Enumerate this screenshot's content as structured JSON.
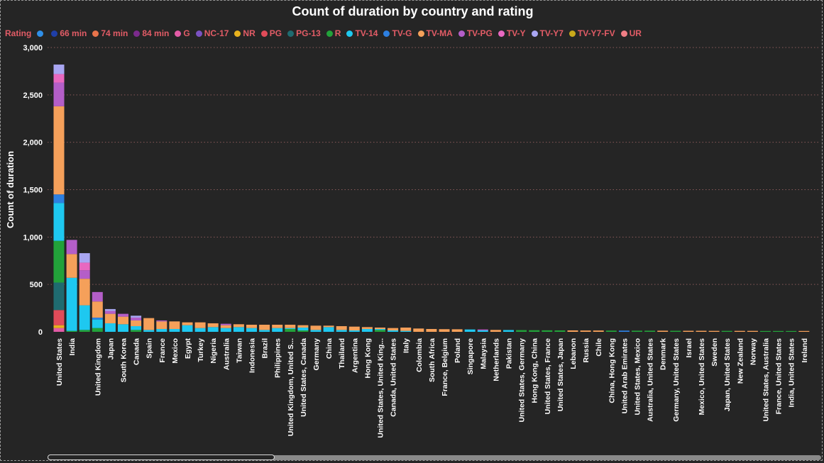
{
  "chart_data": {
    "type": "bar",
    "stacked": true,
    "title": "Count of duration by country and rating",
    "ylabel": "Count of duration",
    "xlabel": "",
    "ylim": [
      0,
      3000
    ],
    "yticks": [
      0,
      500,
      1000,
      1500,
      2000,
      2500,
      3000
    ],
    "ytick_labels": [
      "0",
      "500",
      "1,000",
      "1,500",
      "2,000",
      "2,500",
      "3,000"
    ],
    "grid": "horizontal-dotted",
    "legend_title": "Rating",
    "legend_position": "top-left",
    "series_defs": [
      {
        "name": "",
        "color": "#2f8fe8"
      },
      {
        "name": "66 min",
        "color": "#1f3fa8"
      },
      {
        "name": "74 min",
        "color": "#e8734a"
      },
      {
        "name": "84 min",
        "color": "#7b2a8c"
      },
      {
        "name": "G",
        "color": "#e35ba6"
      },
      {
        "name": "NC-17",
        "color": "#7a52c2"
      },
      {
        "name": "NR",
        "color": "#e8b21d"
      },
      {
        "name": "PG",
        "color": "#e04b59"
      },
      {
        "name": "PG-13",
        "color": "#1f6b70"
      },
      {
        "name": "R",
        "color": "#22a23a"
      },
      {
        "name": "TV-14",
        "color": "#1ec8f0"
      },
      {
        "name": "TV-G",
        "color": "#2d7fe0"
      },
      {
        "name": "TV-MA",
        "color": "#f5a05a"
      },
      {
        "name": "TV-PG",
        "color": "#b45ec8"
      },
      {
        "name": "TV-Y",
        "color": "#e868c0"
      },
      {
        "name": "TV-Y7",
        "color": "#a9a6f2"
      },
      {
        "name": "TV-Y7-FV",
        "color": "#c8a81a"
      },
      {
        "name": "UR",
        "color": "#ef7e85"
      }
    ],
    "categories": [
      "United States",
      "India",
      "",
      "United Kingdom",
      "Japan",
      "South Korea",
      "Canada",
      "Spain",
      "France",
      "Mexico",
      "Egypt",
      "Turkey",
      "Nigeria",
      "Australia",
      "Taiwan",
      "Indonesia",
      "Brazil",
      "Philippines",
      "United Kingdom, United S...",
      "United States, Canada",
      "Germany",
      "China",
      "Thailand",
      "Argentina",
      "Hong Kong",
      "United States, United King...",
      "Canada, United States",
      "Italy",
      "Colombia",
      "South Africa",
      "France, Belgium",
      "Poland",
      "Singapore",
      "Malaysia",
      "Netherlands",
      "Pakistan",
      "United States, Germany",
      "Hong Kong, China",
      "United States, France",
      "United States, Japan",
      "Lebanon",
      "Russia",
      "Chile",
      "China, Hong Kong",
      "United Arab Emirates",
      "United States, Mexico",
      "Australia, United States",
      "Denmark",
      "Germany, United States",
      "Israel",
      "Mexico, United States",
      "Sweden",
      "Japan, United States",
      "New Zealand",
      "Norway",
      "United States, Australia",
      "France, United States",
      "India, United States",
      "Ireland"
    ],
    "values": {
      "United States": {
        "PG": 160,
        "PG-13": 290,
        "R": 440,
        "TV-14": 400,
        "TV-G": 90,
        "TV-MA": 930,
        "TV-PG": 250,
        "TV-Y": 90,
        "TV-Y7": 100,
        "G": 40,
        "NR": 30
      },
      "India": {
        "TV-14": 560,
        "TV-MA": 250,
        "TV-PG": 150,
        "R": 10
      },
      "": {
        "TV-14": 260,
        "TV-MA": 280,
        "TV-PG": 90,
        "TV-Y": 80,
        "TV-Y7": 100,
        "R": 20
      },
      "United Kingdom": {
        "R": 40,
        "TV-14": 90,
        "TV-G": 20,
        "TV-MA": 170,
        "TV-PG": 100
      },
      "Japan": {
        "TV-14": 90,
        "TV-MA": 100,
        "TV-PG": 30,
        "TV-Y7": 20
      },
      "South Korea": {
        "TV-14": 80,
        "TV-MA": 80,
        "TV-PG": 30
      },
      "Canada": {
        "R": 20,
        "TV-14": 40,
        "TV-MA": 60,
        "TV-PG": 30,
        "TV-Y7": 20
      },
      "Spain": {
        "TV-14": 20,
        "TV-MA": 125
      },
      "France": {
        "TV-14": 30,
        "TV-MA": 80,
        "TV-PG": 10
      },
      "Mexico": {
        "TV-14": 30,
        "TV-MA": 80
      },
      "Egypt": {
        "TV-14": 70,
        "TV-MA": 30
      },
      "Turkey": {
        "TV-14": 40,
        "TV-MA": 60
      },
      "Nigeria": {
        "TV-14": 50,
        "TV-MA": 40
      },
      "Australia": {
        "TV-14": 40,
        "TV-MA": 30,
        "TV-PG": 15
      },
      "Taiwan": {
        "TV-14": 50,
        "TV-MA": 30
      },
      "Indonesia": {
        "TV-14": 40,
        "TV-MA": 35
      },
      "Brazil": {
        "TV-14": 20,
        "TV-MA": 55
      },
      "Philippines": {
        "TV-14": 40,
        "TV-MA": 35
      },
      "United Kingdom, United S...": {
        "R": 30,
        "TV-MA": 35,
        "TV-14": 10
      },
      "United States, Canada": {
        "R": 15,
        "TV-14": 30,
        "TV-MA": 25
      },
      "Germany": {
        "TV-14": 20,
        "TV-MA": 45
      },
      "China": {
        "TV-14": 50,
        "TV-MA": 15
      },
      "Thailand": {
        "TV-14": 20,
        "TV-MA": 40
      },
      "Argentina": {
        "TV-14": 15,
        "TV-MA": 40
      },
      "Hong Kong": {
        "TV-14": 30,
        "TV-MA": 20
      },
      "United States, United King...": {
        "R": 20,
        "TV-14": 10,
        "TV-MA": 15
      },
      "Canada, United States": {
        "TV-14": 15,
        "TV-MA": 25
      },
      "Italy": {
        "TV-14": 10,
        "TV-MA": 35
      },
      "Colombia": {
        "TV-MA": 35
      },
      "South Africa": {
        "TV-MA": 30
      },
      "France, Belgium": {
        "TV-MA": 28
      },
      "Poland": {
        "TV-MA": 27
      },
      "Singapore": {
        "TV-14": 25
      },
      "Malaysia": {
        "TV-14": 15,
        "TV-PG": 10
      },
      "Netherlands": {
        "TV-MA": 20
      },
      "Pakistan": {
        "TV-14": 19
      },
      "United States, Germany": {
        "R": 18
      },
      "Hong Kong, China": {
        "R": 17
      },
      "United States, France": {
        "R": 16
      },
      "United States, Japan": {
        "R": 15
      },
      "Lebanon": {
        "TV-MA": 15
      },
      "Russia": {
        "TV-MA": 14
      },
      "Chile": {
        "TV-MA": 14
      },
      "China, Hong Kong": {
        "R": 13
      },
      "United Arab Emirates": {
        "TV-G": 13
      },
      "United States, Mexico": {
        "R": 12
      },
      "Australia, United States": {
        "R": 12
      },
      "Denmark": {
        "TV-MA": 12
      },
      "Germany, United States": {
        "R": 11
      },
      "Israel": {
        "TV-MA": 11
      },
      "Mexico, United States": {
        "TV-MA": 11
      },
      "Sweden": {
        "TV-MA": 10
      },
      "Japan, United States": {
        "R": 10
      },
      "New Zealand": {
        "TV-MA": 10
      },
      "Norway": {
        "TV-MA": 10
      },
      "United States, Australia": {
        "R": 9
      },
      "France, United States": {
        "R": 9
      },
      "India, United States": {
        "R": 9
      },
      "Ireland": {
        "TV-MA": 9
      }
    }
  }
}
